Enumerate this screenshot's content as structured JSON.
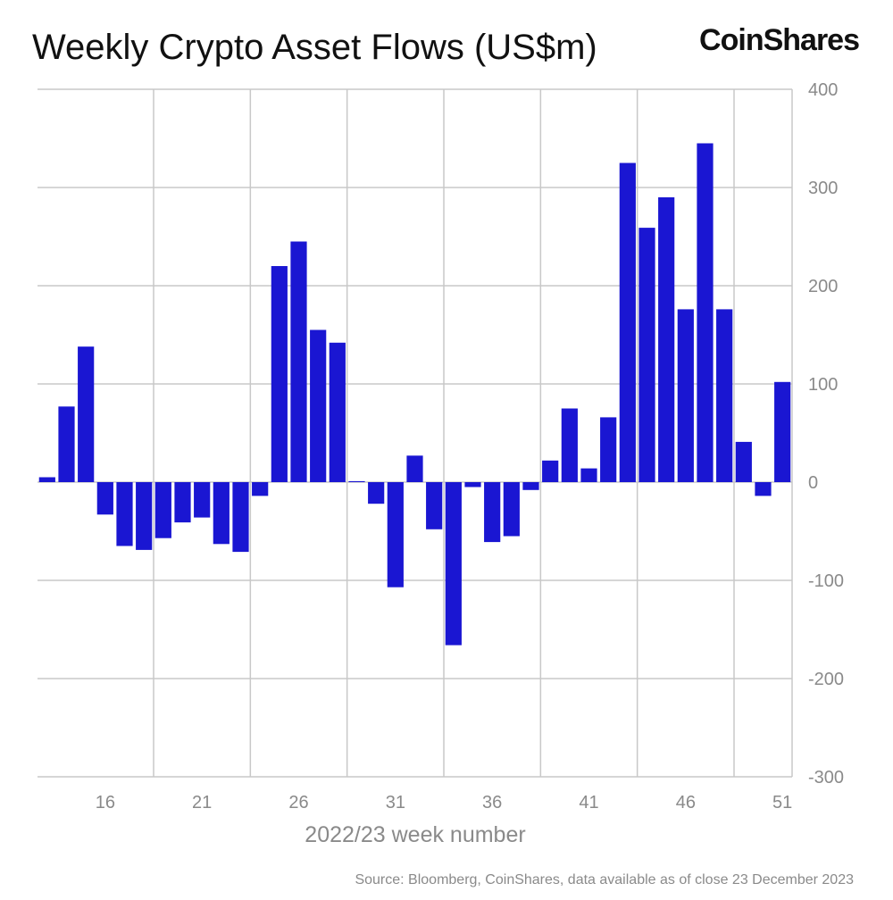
{
  "chart_data": {
    "type": "bar",
    "title": "Weekly Crypto Asset Flows (US$m)",
    "brand": "CoinShares",
    "xlabel": "2022/23 week number",
    "ylabel": "",
    "source": "Source: Bloomberg, CoinShares, data available as of close 23 December 2023",
    "ylim": [
      -300,
      400
    ],
    "yticks": [
      400,
      300,
      200,
      100,
      0,
      -100,
      -200,
      -300
    ],
    "ytick_labels": [
      "400",
      "300",
      "200",
      "100",
      "0",
      "-100",
      "-200",
      "-300"
    ],
    "xtick_labels": [
      "16",
      "21",
      "26",
      "31",
      "36",
      "41",
      "46",
      "51"
    ],
    "xticks": [
      16,
      21,
      26,
      31,
      36,
      41,
      46,
      51
    ],
    "grid": true,
    "categories": [
      13,
      14,
      15,
      16,
      17,
      18,
      19,
      20,
      21,
      22,
      23,
      24,
      25,
      26,
      27,
      28,
      29,
      30,
      31,
      32,
      33,
      34,
      35,
      36,
      37,
      38,
      39,
      40,
      41,
      42,
      43,
      44,
      45,
      46,
      47,
      48,
      49,
      50,
      51
    ],
    "values": [
      5,
      77,
      138,
      -33,
      -65,
      -69,
      -57,
      -41,
      -36,
      -63,
      -71,
      -14,
      220,
      245,
      155,
      142,
      1,
      -22,
      -107,
      27,
      -48,
      -166,
      -5,
      -61,
      -55,
      -8,
      22,
      75,
      14,
      66,
      325,
      259,
      290,
      176,
      345,
      176,
      41,
      -14,
      102
    ],
    "colors": {
      "bar": "#1a16d2",
      "grid": "#c8c8c8",
      "text": "#111111",
      "muted": "#8a8a8a"
    }
  }
}
